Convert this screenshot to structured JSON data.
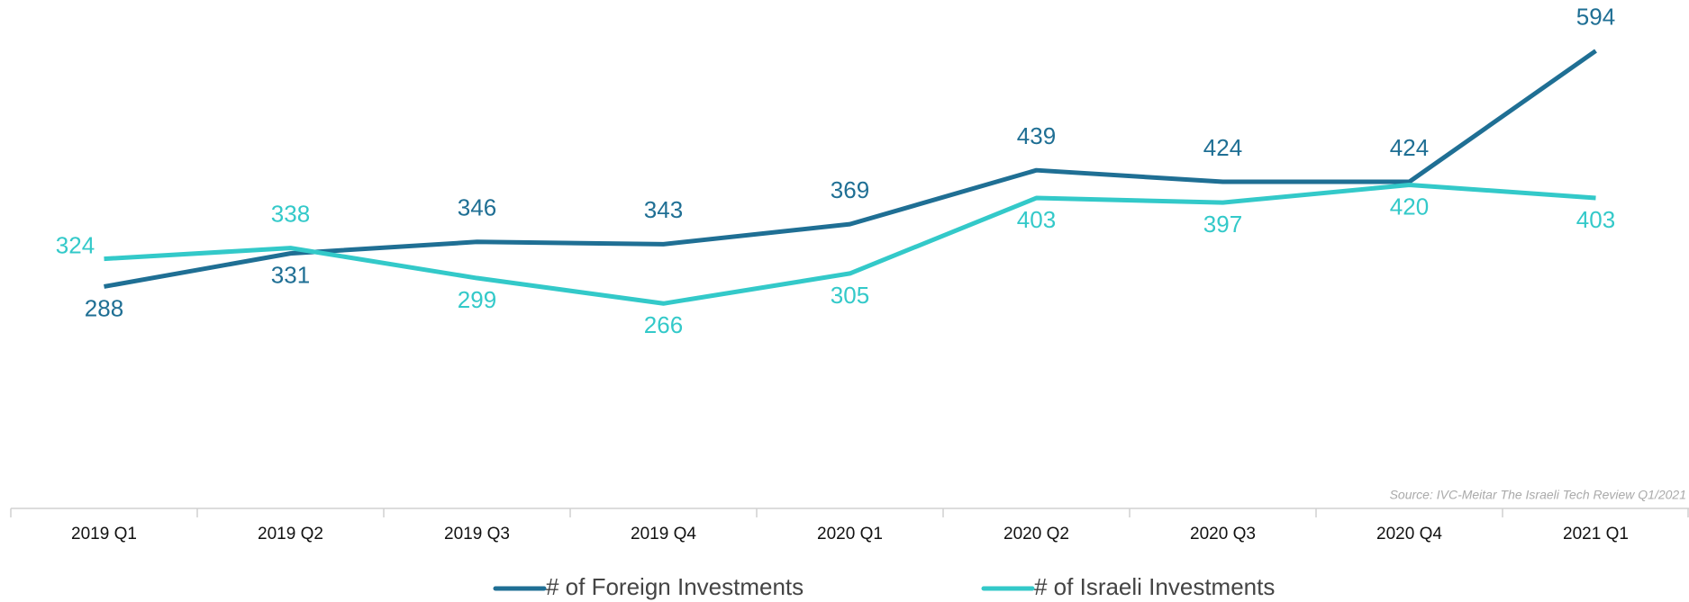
{
  "chart_data": {
    "type": "line",
    "categories": [
      "2019 Q1",
      "2019 Q2",
      "2019 Q3",
      "2019 Q4",
      "2020 Q1",
      "2020 Q2",
      "2020 Q3",
      "2020 Q4",
      "2021 Q1"
    ],
    "series": [
      {
        "name": "# of Foreign Investments",
        "color": "#1f6f94",
        "values": [
          288,
          331,
          346,
          343,
          369,
          439,
          424,
          424,
          594
        ]
      },
      {
        "name": "# of Israeli Investments",
        "color": "#33c9c9",
        "values": [
          324,
          338,
          299,
          266,
          305,
          403,
          397,
          420,
          403
        ]
      }
    ],
    "ylim": [
      0,
      660
    ],
    "annotation": "Source: IVC-Meitar The Israeli Tech Review Q1/2021"
  }
}
